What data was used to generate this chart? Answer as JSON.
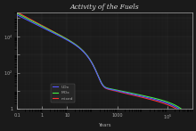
{
  "title": "Activity of the Fuels",
  "xlabel": "Years",
  "ylabel": "",
  "xmin": 0.1,
  "xmax": 1000000.0,
  "ymin": 1,
  "ymax": 200000.0,
  "background_color": "#1a1a1a",
  "grid_color": "#444444",
  "legend_labels": [
    "UOx",
    "MOx",
    "mixed"
  ],
  "line_colors": [
    "#5555ff",
    "#44ee44",
    "#ff3333"
  ],
  "title_color": "#dddddd",
  "axis_color": "#aaaaaa",
  "tick_color": "#aaaaaa"
}
